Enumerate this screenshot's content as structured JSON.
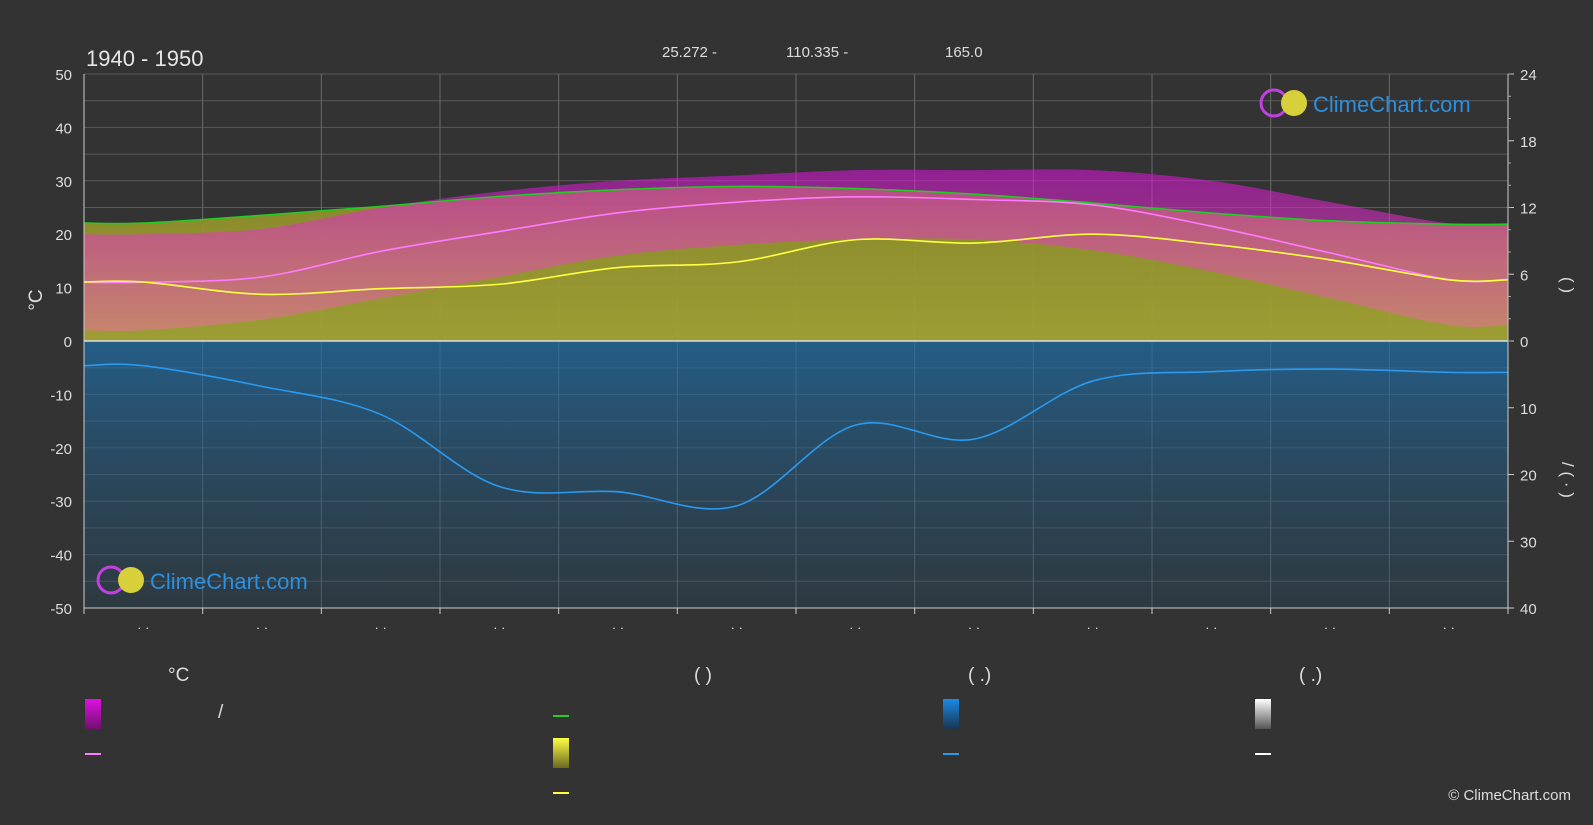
{
  "header": {
    "title": "1940 - 1950",
    "coord_lat": "25.272 -",
    "coord_lon": "110.335 -",
    "coord_elev": "165.0"
  },
  "logo": {
    "text": "ClimeChart.com"
  },
  "copyright": "© ClimeChart.com",
  "legend": {
    "temp_header": "°C",
    "sun_header": "(          )",
    "rain_header": "(    .)",
    "snow_header": "(    .)",
    "slash": "/",
    "colors": {
      "temp_band": "#e010e0",
      "temp_line": "#ff7aff",
      "daylight_line": "#22cc22",
      "sun_band": "#e8e82a",
      "sun_line": "#ffff44",
      "rain_band": "#1a8ae6",
      "rain_line": "#2a9af0",
      "snow_band": "#e0e0e0",
      "snow_line": "#ffffff"
    }
  },
  "chart_data": {
    "type": "line",
    "x_ticks": [
      "· ·",
      "· ·",
      "· ·",
      "· ·",
      "· ·",
      "· ·",
      "· ·",
      "· ·",
      "· ·",
      "· ·",
      "· ·",
      "· ·"
    ],
    "y_left": {
      "label": "°C",
      "min": -50,
      "max": 50,
      "ticks": [
        50,
        40,
        30,
        20,
        10,
        0,
        -10,
        -20,
        -30,
        -40,
        -50
      ]
    },
    "y_right_top": {
      "ticks": [
        24,
        18,
        12,
        6,
        0
      ],
      "range": [
        0,
        24
      ]
    },
    "y_right_bottom": {
      "ticks": [
        0,
        10,
        20,
        30,
        40
      ],
      "range": [
        0,
        40
      ]
    },
    "y_right_label_top": "(          )",
    "y_right_label_bottom": "/ ( · )",
    "grid": true,
    "series": {
      "daylight_hours": [
        10.6,
        11.3,
        12.1,
        13.0,
        13.6,
        13.9,
        13.7,
        13.2,
        12.4,
        11.5,
        10.8,
        10.5
      ],
      "temperature_mean": [
        11.0,
        12.0,
        16.8,
        20.5,
        24.0,
        26.0,
        27.0,
        26.5,
        25.5,
        21.5,
        16.5,
        11.5
      ],
      "temperature_band": [
        [
          2,
          20
        ],
        [
          4,
          21
        ],
        [
          8,
          25
        ],
        [
          12,
          28
        ],
        [
          16,
          30
        ],
        [
          18,
          31
        ],
        [
          19,
          32
        ],
        [
          19,
          32
        ],
        [
          17,
          32
        ],
        [
          13,
          30
        ],
        [
          8,
          26
        ],
        [
          3,
          22
        ]
      ],
      "sunshine_hours": [
        5.3,
        4.2,
        4.7,
        5.1,
        6.6,
        7.1,
        9.1,
        8.8,
        9.6,
        8.7,
        7.3,
        5.5
      ],
      "precipitation_mm": [
        3.7,
        6.8,
        11.0,
        21.8,
        22.6,
        24.7,
        12.6,
        14.7,
        6.0,
        4.6,
        4.2,
        4.7
      ]
    }
  }
}
